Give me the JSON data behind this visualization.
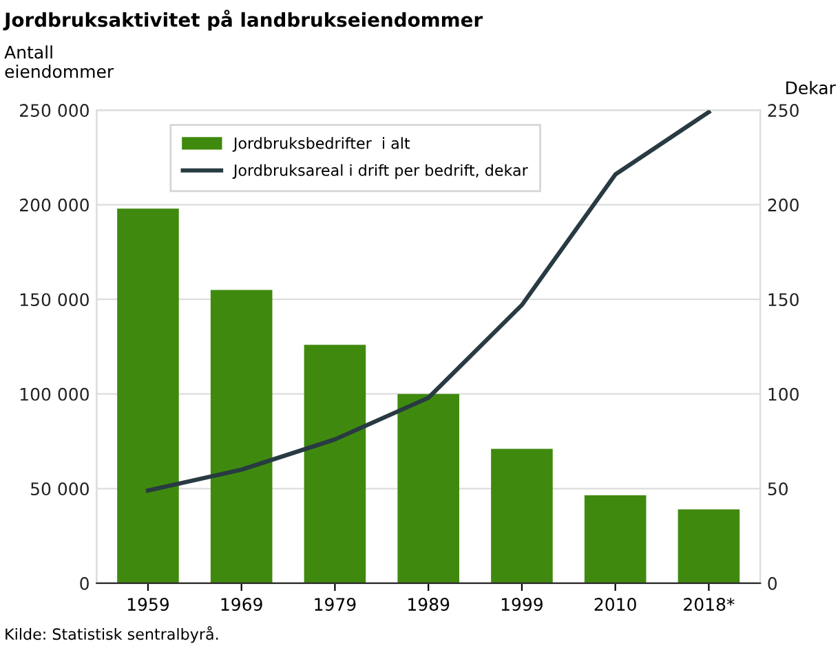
{
  "chart_data": {
    "type": "bar",
    "title": "Jordbruksaktivitet på landbrukseiendommer",
    "ylabel": "Antall\neiendommer",
    "y2label": "Dekar",
    "categories": [
      "1959",
      "1969",
      "1979",
      "1989",
      "1999",
      "2010",
      "2018*"
    ],
    "series": [
      {
        "name": "Jordbruksbedrifter  i alt",
        "color": "#3f8a0e",
        "values": [
          198000,
          155000,
          126000,
          100000,
          71000,
          46500,
          39000
        ]
      },
      {
        "name": "Jordbruksareal i drift per bedrift, dekar",
        "type": "line",
        "axis": "y2",
        "color": "#283a42",
        "values": [
          49,
          60,
          76,
          98,
          147,
          216,
          249
        ]
      }
    ],
    "ylim": [
      0,
      250000
    ],
    "yticks": [
      {
        "value": 0,
        "label": "0"
      },
      {
        "value": 50000,
        "label": "50 000"
      },
      {
        "value": 100000,
        "label": "100 000"
      },
      {
        "value": 150000,
        "label": "150 000"
      },
      {
        "value": 200000,
        "label": "200 000"
      },
      {
        "value": 250000,
        "label": "250 000"
      }
    ],
    "y2lim": [
      0,
      250
    ],
    "y2ticks": [
      0,
      50,
      100,
      150,
      200,
      250
    ],
    "grid": "y",
    "legend": "top",
    "marker": "none",
    "line_style": "solid",
    "annotations": [
      "Kilde: Statistisk sentralbyrå."
    ]
  }
}
